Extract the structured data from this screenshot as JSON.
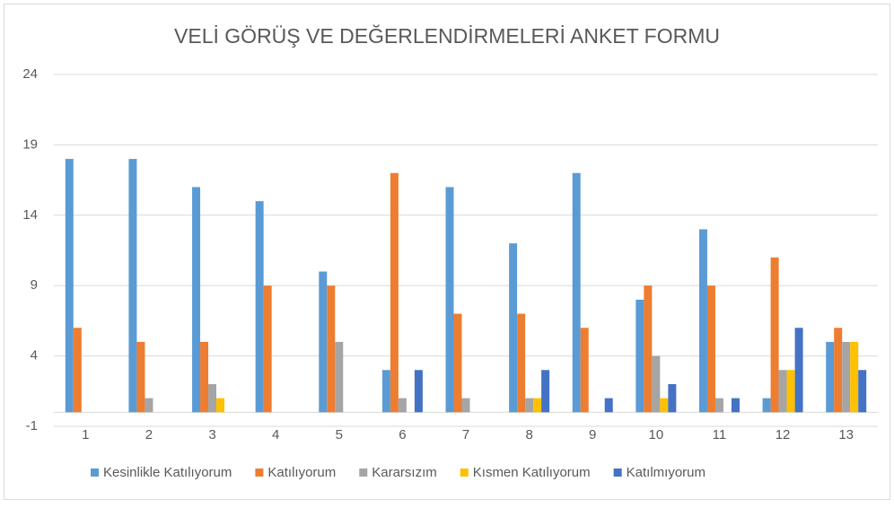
{
  "chart_data": {
    "type": "bar",
    "title": "VELİ GÖRÜŞ VE DEĞERLENDİRMELERİ ANKET FORMU",
    "categories": [
      "1",
      "2",
      "3",
      "4",
      "5",
      "6",
      "7",
      "8",
      "9",
      "10",
      "11",
      "12",
      "13"
    ],
    "series": [
      {
        "name": "Kesinlikle Katılıyorum",
        "color": "#5b9bd5",
        "values": [
          18,
          18,
          16,
          15,
          10,
          3,
          16,
          12,
          17,
          8,
          13,
          1,
          5
        ]
      },
      {
        "name": "Katılıyorum",
        "color": "#ed7d31",
        "values": [
          6,
          5,
          5,
          9,
          9,
          17,
          7,
          7,
          6,
          9,
          9,
          11,
          6
        ]
      },
      {
        "name": "Kararsızım",
        "color": "#a5a5a5",
        "values": [
          0,
          1,
          2,
          0,
          5,
          1,
          1,
          1,
          0,
          4,
          1,
          3,
          5
        ]
      },
      {
        "name": "Kısmen Katılıyorum",
        "color": "#ffc000",
        "values": [
          0,
          0,
          1,
          0,
          0,
          0,
          0,
          1,
          0,
          1,
          0,
          3,
          5
        ]
      },
      {
        "name": "Katılmıyorum",
        "color": "#4472c4",
        "values": [
          0,
          0,
          0,
          0,
          0,
          3,
          0,
          3,
          1,
          2,
          1,
          6,
          3
        ]
      }
    ],
    "ylim": [
      -1,
      24
    ],
    "yticks": [
      -1,
      4,
      9,
      14,
      19,
      24
    ],
    "grid": true,
    "legend": "bottom"
  }
}
